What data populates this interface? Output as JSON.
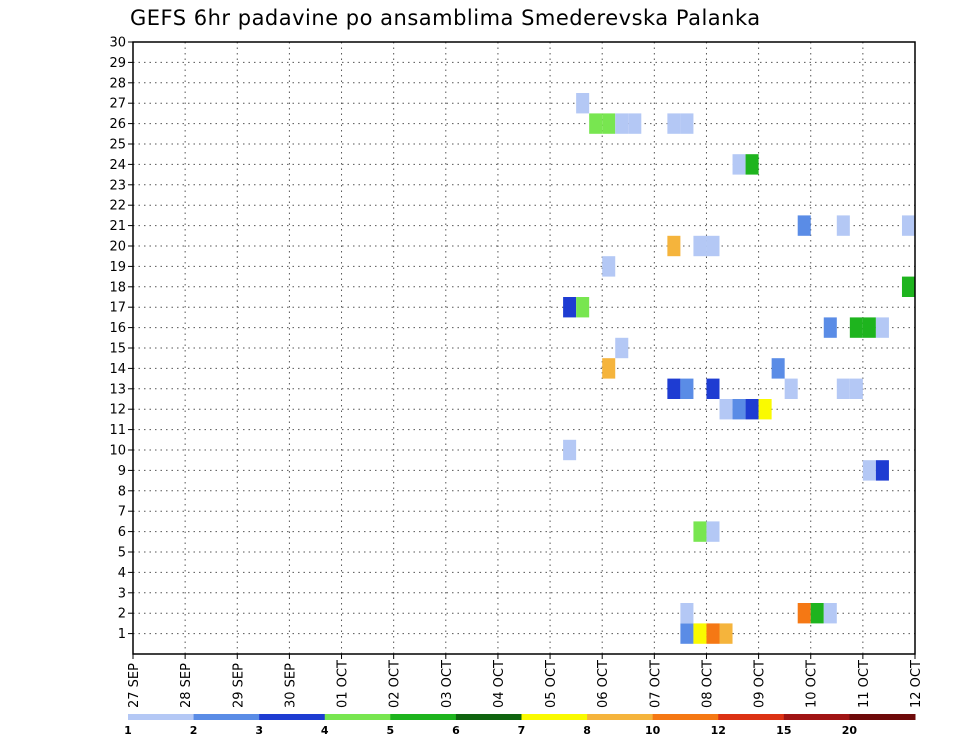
{
  "title": "GEFS 6hr padavine po ansamblima Smederevska Palanka",
  "chart_data": {
    "type": "heatmap",
    "title": "GEFS 6hr padavine po ansamblima Smederevska Palanka",
    "xlabel": "",
    "ylabel": "",
    "x_ticks": [
      "27 SEP",
      "28 SEP",
      "29 SEP",
      "30 SEP",
      "01 OCT",
      "02 OCT",
      "03 OCT",
      "04 OCT",
      "05 OCT",
      "06 OCT",
      "07 OCT",
      "08 OCT",
      "09 OCT",
      "10 OCT",
      "11 OCT",
      "12 OCT"
    ],
    "y_ticks": [
      1,
      2,
      3,
      4,
      5,
      6,
      7,
      8,
      9,
      10,
      11,
      12,
      13,
      14,
      15,
      16,
      17,
      18,
      19,
      20,
      21,
      22,
      23,
      24,
      25,
      26,
      27,
      28,
      29,
      30
    ],
    "xlim": [
      0,
      60
    ],
    "ylim": [
      0,
      30
    ],
    "grid": true,
    "x_unit": "6-hour steps from 27 SEP",
    "cells": [
      {
        "t": 43,
        "m": 1,
        "v": 2.5
      },
      {
        "t": 44,
        "m": 1,
        "v": 7.5
      },
      {
        "t": 45,
        "m": 1,
        "v": 11
      },
      {
        "t": 46,
        "m": 1,
        "v": 9
      },
      {
        "t": 43,
        "m": 2,
        "v": 1.5
      },
      {
        "t": 52,
        "m": 2,
        "v": 11
      },
      {
        "t": 53,
        "m": 2,
        "v": 5
      },
      {
        "t": 54,
        "m": 2,
        "v": 1.5
      },
      {
        "t": 44,
        "m": 6,
        "v": 4.5
      },
      {
        "t": 45,
        "m": 6,
        "v": 1.5
      },
      {
        "t": 57,
        "m": 9,
        "v": 1.5
      },
      {
        "t": 58,
        "m": 9,
        "v": 3.5
      },
      {
        "t": 34,
        "m": 10,
        "v": 1.5
      },
      {
        "t": 46,
        "m": 12,
        "v": 1.5
      },
      {
        "t": 47,
        "m": 12,
        "v": 2.5
      },
      {
        "t": 48,
        "m": 12,
        "v": 3.5
      },
      {
        "t": 49,
        "m": 12,
        "v": 7.5
      },
      {
        "t": 42,
        "m": 13,
        "v": 3.5
      },
      {
        "t": 43,
        "m": 13,
        "v": 2.5
      },
      {
        "t": 45,
        "m": 13,
        "v": 3.5
      },
      {
        "t": 51,
        "m": 13,
        "v": 1.5
      },
      {
        "t": 55,
        "m": 13,
        "v": 1.5
      },
      {
        "t": 56,
        "m": 13,
        "v": 1.5
      },
      {
        "t": 37,
        "m": 14,
        "v": 8.5
      },
      {
        "t": 50,
        "m": 14,
        "v": 2.5
      },
      {
        "t": 38,
        "m": 15,
        "v": 1.5
      },
      {
        "t": 54,
        "m": 16,
        "v": 2.5
      },
      {
        "t": 56,
        "m": 16,
        "v": 5.5
      },
      {
        "t": 57,
        "m": 16,
        "v": 5.5
      },
      {
        "t": 58,
        "m": 16,
        "v": 1.5
      },
      {
        "t": 34,
        "m": 17,
        "v": 3.5
      },
      {
        "t": 35,
        "m": 17,
        "v": 4.5
      },
      {
        "t": 60,
        "m": 18,
        "v": 5.5
      },
      {
        "t": 37,
        "m": 19,
        "v": 1.5
      },
      {
        "t": 42,
        "m": 20,
        "v": 8.5
      },
      {
        "t": 44,
        "m": 20,
        "v": 1.5
      },
      {
        "t": 45,
        "m": 20,
        "v": 1.5
      },
      {
        "t": 52,
        "m": 21,
        "v": 2.5
      },
      {
        "t": 55,
        "m": 21,
        "v": 1.5
      },
      {
        "t": 60,
        "m": 21,
        "v": 1.5
      },
      {
        "t": 47,
        "m": 24,
        "v": 1.5
      },
      {
        "t": 48,
        "m": 24,
        "v": 5.5
      },
      {
        "t": 36,
        "m": 26,
        "v": 4.5
      },
      {
        "t": 37,
        "m": 26,
        "v": 4.5
      },
      {
        "t": 38,
        "m": 26,
        "v": 1.5
      },
      {
        "t": 39,
        "m": 26,
        "v": 1.5
      },
      {
        "t": 42,
        "m": 26,
        "v": 1.5
      },
      {
        "t": 43,
        "m": 26,
        "v": 1.5
      },
      {
        "t": 35,
        "m": 27,
        "v": 1.5
      }
    ]
  },
  "legend": {
    "labels": [
      "1",
      "2",
      "3",
      "4",
      "5",
      "6",
      "7",
      "8",
      "10",
      "12",
      "15",
      "20"
    ],
    "colors": [
      "#b4c8f5",
      "#5a8ce6",
      "#1e3cd2",
      "#78e650",
      "#1eb41e",
      "#0f640f",
      "#fafa00",
      "#f5b43c",
      "#f57814",
      "#dc3214",
      "#a01414",
      "#6e0a0a"
    ]
  }
}
